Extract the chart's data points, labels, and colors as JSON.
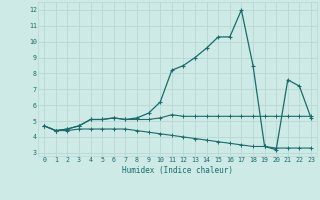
{
  "xlabel": "Humidex (Indice chaleur)",
  "xlim": [
    -0.5,
    23.5
  ],
  "ylim": [
    2.8,
    12.5
  ],
  "yticks": [
    3,
    4,
    5,
    6,
    7,
    8,
    9,
    10,
    11,
    12
  ],
  "xticks": [
    0,
    1,
    2,
    3,
    4,
    5,
    6,
    7,
    8,
    9,
    10,
    11,
    12,
    13,
    14,
    15,
    16,
    17,
    18,
    19,
    20,
    21,
    22,
    23
  ],
  "background_color": "#ceeae6",
  "line_color": "#1a6b6b",
  "grid_color": "#b8d8d4",
  "line1_x": [
    0,
    1,
    2,
    3,
    4,
    5,
    6,
    7,
    8,
    9,
    10,
    11,
    12,
    13,
    14,
    15,
    16,
    17,
    18,
    19,
    20,
    21,
    22,
    23
  ],
  "line1_y": [
    4.7,
    4.4,
    4.5,
    4.7,
    5.1,
    5.1,
    5.2,
    5.1,
    5.1,
    5.1,
    5.2,
    5.4,
    5.3,
    5.3,
    5.3,
    5.3,
    5.3,
    5.3,
    5.3,
    5.3,
    5.3,
    5.3,
    5.3,
    5.3
  ],
  "line2_x": [
    0,
    1,
    2,
    3,
    4,
    5,
    6,
    7,
    8,
    9,
    10,
    11,
    12,
    13,
    14,
    15,
    16,
    17,
    18,
    19,
    20,
    21,
    22,
    23
  ],
  "line2_y": [
    4.7,
    4.4,
    4.4,
    4.5,
    4.5,
    4.5,
    4.5,
    4.5,
    4.4,
    4.3,
    4.2,
    4.1,
    4.0,
    3.9,
    3.8,
    3.7,
    3.6,
    3.5,
    3.4,
    3.4,
    3.3,
    3.3,
    3.3,
    3.3
  ],
  "line3_x": [
    0,
    1,
    2,
    3,
    4,
    5,
    6,
    7,
    8,
    9,
    10,
    11,
    12,
    13,
    14,
    15,
    16,
    17,
    18,
    19,
    20,
    21,
    22,
    23
  ],
  "line3_y": [
    4.7,
    4.4,
    4.5,
    4.7,
    5.1,
    5.1,
    5.2,
    5.1,
    5.2,
    5.5,
    6.2,
    8.2,
    8.5,
    9.0,
    9.6,
    10.3,
    10.3,
    12.0,
    8.5,
    3.4,
    3.2,
    7.6,
    7.2,
    5.2
  ]
}
